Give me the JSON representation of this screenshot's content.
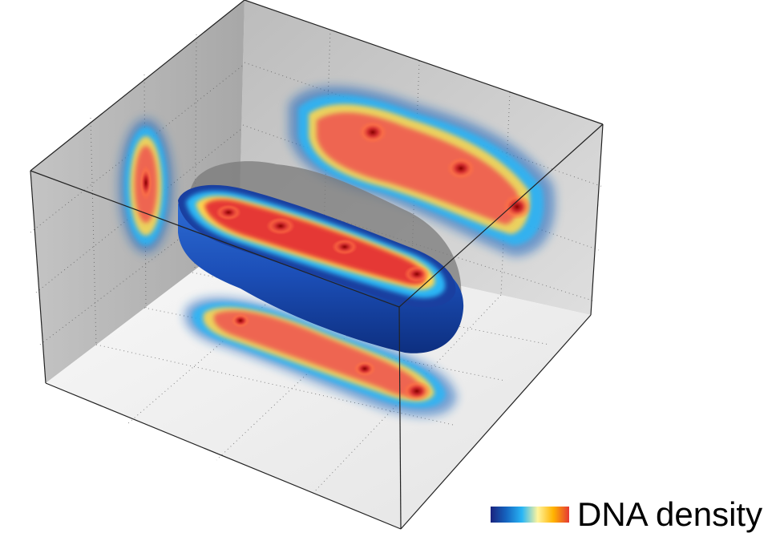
{
  "colors": {
    "density_scale": [
      "#1a237e",
      "#1565c0",
      "#29b6f6",
      "#fff59d",
      "#ffb300",
      "#e53935",
      "#8b0000"
    ],
    "back_walls": "#c8c8c8",
    "floor": "#ededed",
    "body_surface": "#1f4fb0"
  },
  "legend": {
    "label": "DNA density"
  }
}
